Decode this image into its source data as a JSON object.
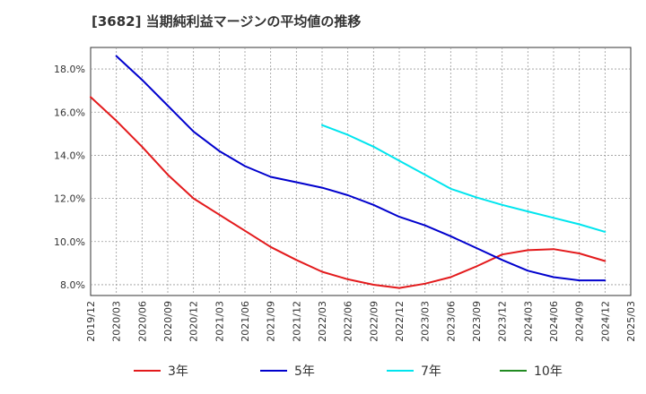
{
  "chart_data": {
    "type": "line",
    "title": "[3682]  当期純利益マージンの平均値の推移",
    "xlabel": "",
    "ylabel": "",
    "ylim": [
      7.5,
      19.0
    ],
    "y_ticks": [
      "8.0%",
      "10.0%",
      "12.0%",
      "14.0%",
      "16.0%",
      "18.0%"
    ],
    "y_tick_values": [
      8,
      10,
      12,
      14,
      16,
      18
    ],
    "x_ticks": [
      "2019/12",
      "2020/03",
      "2020/06",
      "2020/09",
      "2020/12",
      "2021/03",
      "2021/06",
      "2021/09",
      "2021/12",
      "2022/03",
      "2022/06",
      "2022/09",
      "2022/12",
      "2023/03",
      "2023/06",
      "2023/09",
      "2023/12",
      "2024/03",
      "2024/06",
      "2024/09",
      "2024/12",
      "2025/03"
    ],
    "grid": true,
    "legend_position": "bottom",
    "series": [
      {
        "name": "3年",
        "color": "#e31a1c",
        "x": [
          "2019/12",
          "2020/03",
          "2020/06",
          "2020/09",
          "2020/12",
          "2021/03",
          "2021/06",
          "2021/09",
          "2021/12",
          "2022/03",
          "2022/06",
          "2022/09",
          "2022/12",
          "2023/03",
          "2023/06",
          "2023/09",
          "2023/12",
          "2024/03",
          "2024/06",
          "2024/09",
          "2024/12"
        ],
        "values": [
          16.7,
          15.6,
          14.4,
          13.1,
          12.0,
          11.25,
          10.5,
          9.75,
          9.15,
          8.6,
          8.25,
          8.0,
          7.85,
          8.05,
          8.35,
          8.85,
          9.4,
          9.6,
          9.65,
          9.45,
          9.1
        ]
      },
      {
        "name": "5年",
        "color": "#0000cd",
        "x": [
          "2020/03",
          "2020/06",
          "2020/09",
          "2020/12",
          "2021/03",
          "2021/06",
          "2021/09",
          "2021/12",
          "2022/03",
          "2022/06",
          "2022/09",
          "2022/12",
          "2023/03",
          "2023/06",
          "2023/09",
          "2023/12",
          "2024/03",
          "2024/06",
          "2024/09",
          "2024/12"
        ],
        "values": [
          18.6,
          17.5,
          16.3,
          15.1,
          14.2,
          13.5,
          13.0,
          12.75,
          12.5,
          12.15,
          11.7,
          11.15,
          10.75,
          10.25,
          9.7,
          9.15,
          8.65,
          8.35,
          8.2,
          8.2
        ]
      },
      {
        "name": "7年",
        "color": "#00e5ee",
        "x": [
          "2022/03",
          "2022/06",
          "2022/09",
          "2022/12",
          "2023/03",
          "2023/06",
          "2023/09",
          "2023/12",
          "2024/03",
          "2024/06",
          "2024/09",
          "2024/12"
        ],
        "values": [
          15.4,
          14.95,
          14.4,
          13.75,
          13.1,
          12.45,
          12.05,
          11.7,
          11.4,
          11.1,
          10.8,
          10.45
        ]
      },
      {
        "name": "10年",
        "color": "#228b22",
        "x": [],
        "values": []
      }
    ]
  }
}
